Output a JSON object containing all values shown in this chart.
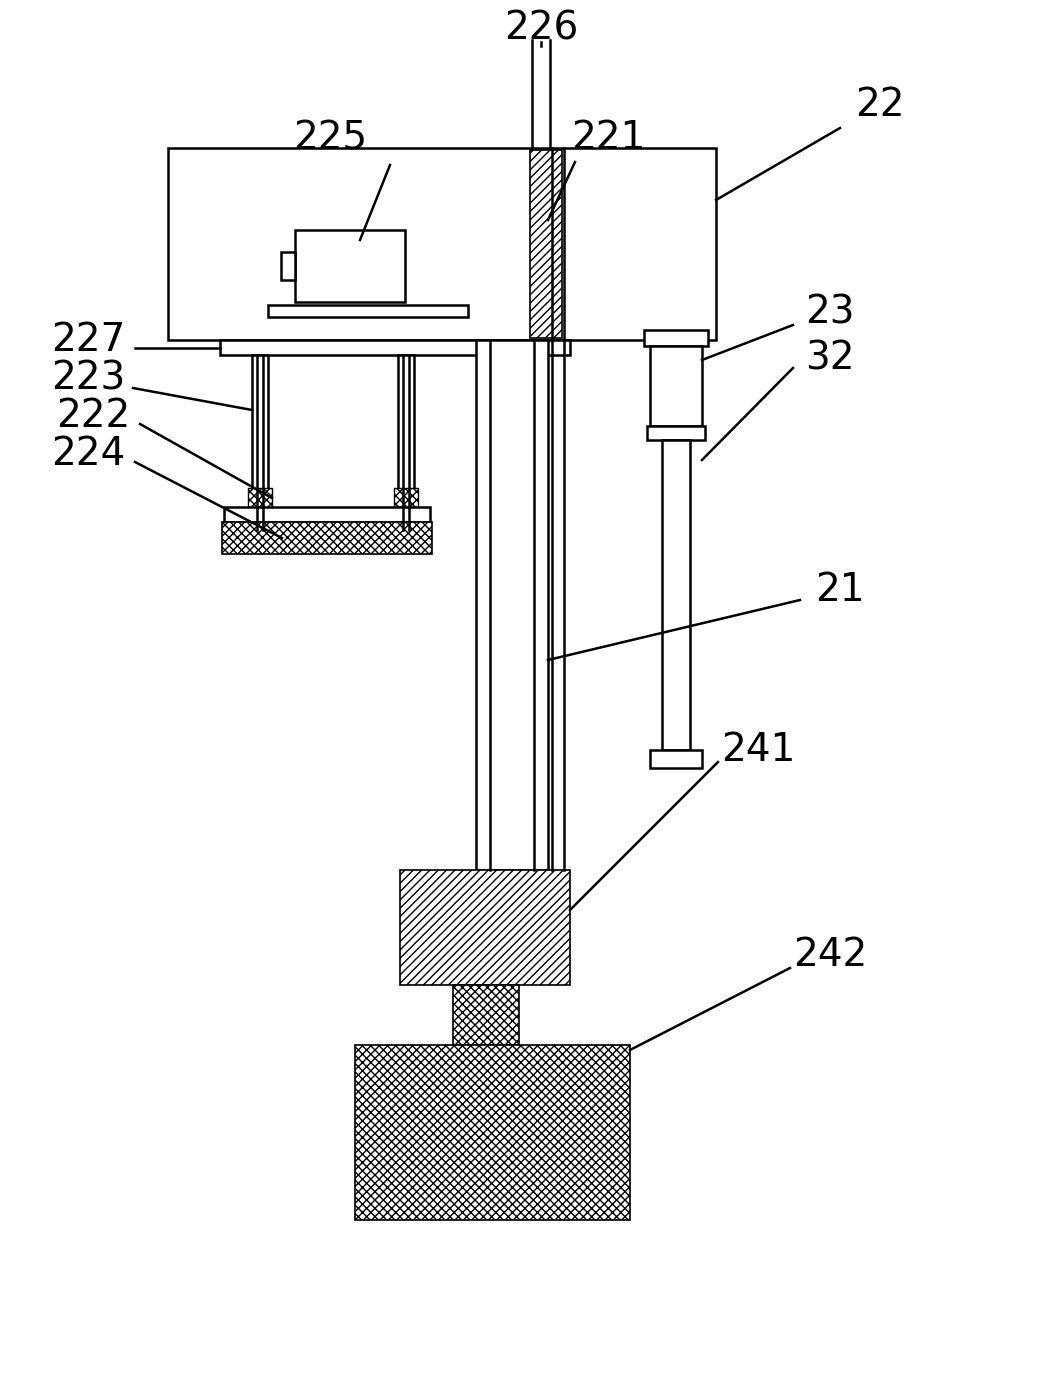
{
  "bg_color": "#ffffff",
  "figsize": [
    10.64,
    13.89
  ],
  "dpi": 100,
  "label_fs": 28,
  "lw": 1.8
}
